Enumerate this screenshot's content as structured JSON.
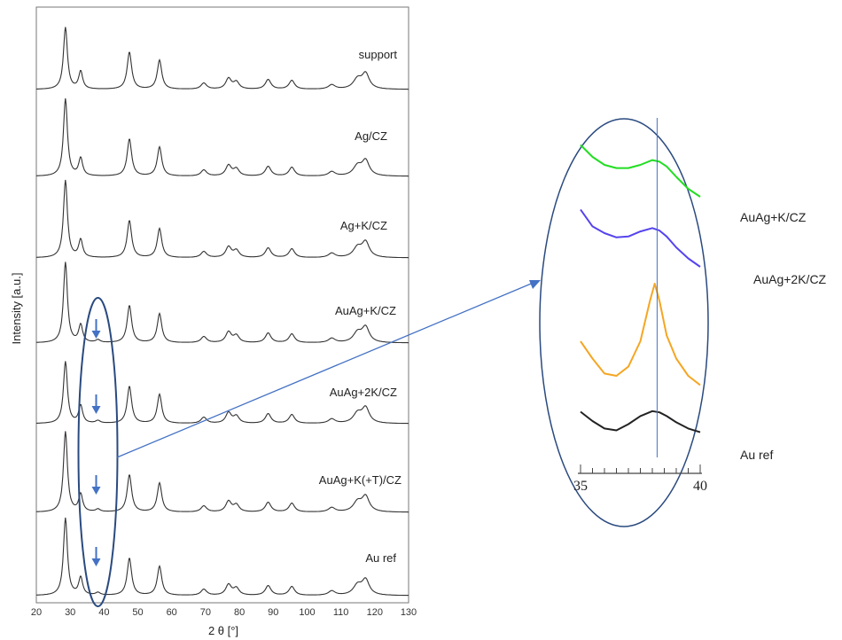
{
  "chart_data": [
    {
      "type": "line",
      "title": "",
      "xlabel": "2 θ [°]",
      "ylabel": "Intensity [a.u.]",
      "xlim": [
        20,
        130
      ],
      "x_ticks": [
        "20",
        "30",
        "40",
        "50",
        "60",
        "70",
        "80",
        "90",
        "100",
        "110",
        "120",
        "130"
      ],
      "stacked_offset": true,
      "series": [
        {
          "name": "support",
          "label": "support",
          "peaks_2theta": [
            28.6,
            33.1,
            47.5,
            56.4,
            69.5,
            76.8,
            79.1,
            88.5,
            95.5,
            107.3,
            114.9,
            117.3
          ]
        },
        {
          "name": "Ag/CZ",
          "label": "Ag/CZ",
          "peaks_2theta": [
            28.6,
            33.1,
            47.5,
            56.4,
            69.5,
            76.8,
            79.1,
            88.5,
            95.5,
            107.3,
            114.9,
            117.3
          ]
        },
        {
          "name": "Ag+K/CZ",
          "label": "Ag+K/CZ",
          "peaks_2theta": [
            28.6,
            33.1,
            47.5,
            56.4,
            69.5,
            76.8,
            79.1,
            88.5,
            95.5,
            107.3,
            114.9,
            117.3
          ]
        },
        {
          "name": "AuAg+K/CZ",
          "label": "AuAg+K/CZ",
          "peaks_2theta": [
            28.6,
            33.1,
            38.2,
            47.5,
            56.4,
            69.5,
            76.8,
            79.1,
            88.5,
            95.5,
            107.3,
            114.9,
            117.3
          ]
        },
        {
          "name": "AuAg+2K/CZ",
          "label": "AuAg+2K/CZ",
          "peaks_2theta": [
            28.6,
            33.1,
            38.2,
            47.5,
            56.4,
            69.5,
            76.8,
            79.1,
            88.5,
            95.5,
            107.3,
            114.9,
            117.3
          ]
        },
        {
          "name": "AuAg+K(+T)/CZ",
          "label": "AuAg+K(+T)/CZ",
          "peaks_2theta": [
            28.6,
            33.1,
            38.2,
            47.5,
            56.4,
            69.5,
            76.8,
            79.1,
            88.5,
            95.5,
            107.3,
            114.9,
            117.3
          ]
        },
        {
          "name": "Au ref",
          "label": "Au ref",
          "peaks_2theta": [
            28.6,
            33.1,
            38.2,
            47.5,
            56.4,
            69.5,
            76.8,
            79.1,
            88.5,
            95.5,
            107.3,
            114.9,
            117.3
          ]
        }
      ],
      "annotations": [
        "highlight ellipse around 2θ ≈ 38° with downward arrows on the Au-containing traces"
      ]
    },
    {
      "type": "line",
      "title": "",
      "xlim": [
        35,
        40
      ],
      "x_ticks": [
        "35",
        "40"
      ],
      "reference_line_2theta": 38.2,
      "series": [
        {
          "name": "green",
          "label": "AuAg+K/CZ",
          "color": "#22dd22",
          "x": [
            35.0,
            35.5,
            36.0,
            36.5,
            37.0,
            37.5,
            38.0,
            38.3,
            38.6,
            39.0,
            39.5,
            40.0
          ],
          "y": [
            0.85,
            0.7,
            0.6,
            0.56,
            0.56,
            0.6,
            0.66,
            0.64,
            0.58,
            0.45,
            0.3,
            0.2
          ]
        },
        {
          "name": "blue",
          "label": "AuAg+2K/CZ",
          "color": "#5544ee",
          "x": [
            35.0,
            35.5,
            36.0,
            36.5,
            37.0,
            37.5,
            38.0,
            38.3,
            38.6,
            39.0,
            39.5,
            40.0
          ],
          "y": [
            0.88,
            0.68,
            0.6,
            0.55,
            0.56,
            0.62,
            0.66,
            0.63,
            0.56,
            0.43,
            0.3,
            0.2
          ]
        },
        {
          "name": "orange",
          "label": "",
          "color": "#f5a623",
          "x": [
            35.0,
            35.5,
            36.0,
            36.5,
            37.0,
            37.5,
            37.9,
            38.1,
            38.3,
            38.6,
            39.0,
            39.5,
            40.0
          ],
          "y": [
            0.5,
            0.35,
            0.22,
            0.2,
            0.28,
            0.5,
            0.85,
            1.0,
            0.85,
            0.55,
            0.35,
            0.2,
            0.12
          ]
        },
        {
          "name": "black",
          "label": "Au ref",
          "color": "#222222",
          "x": [
            35.0,
            35.5,
            36.0,
            36.5,
            37.0,
            37.5,
            38.0,
            38.3,
            38.6,
            39.0,
            39.5,
            40.0
          ],
          "y": [
            0.65,
            0.5,
            0.38,
            0.35,
            0.45,
            0.58,
            0.66,
            0.64,
            0.58,
            0.48,
            0.38,
            0.32
          ]
        }
      ]
    }
  ],
  "colors": {
    "trace": "#333333",
    "accent": "#4472c4",
    "frame": "#777777"
  }
}
